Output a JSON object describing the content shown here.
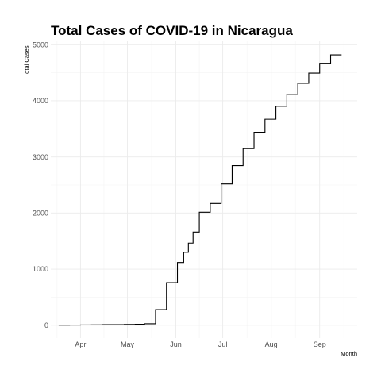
{
  "chart_data": {
    "type": "line",
    "title": "Total Cases of COVID-19 in Nicaragua",
    "xlabel": "Month",
    "ylabel": "Total Cases",
    "xlim": [
      "2020-03-13",
      "2020-09-25"
    ],
    "ylim": [
      -230,
      5060
    ],
    "x_ticks": [
      {
        "date": "2020-04-01",
        "label": "Apr"
      },
      {
        "date": "2020-05-01",
        "label": "May"
      },
      {
        "date": "2020-06-01",
        "label": "Jun"
      },
      {
        "date": "2020-07-01",
        "label": "Jul"
      },
      {
        "date": "2020-08-01",
        "label": "Aug"
      },
      {
        "date": "2020-09-01",
        "label": "Sep"
      }
    ],
    "y_ticks": [
      0,
      1000,
      2000,
      3000,
      4000,
      5000
    ],
    "grid": true,
    "series": [
      {
        "style": "step",
        "points": [
          {
            "x": "2020-03-18",
            "y": 1
          },
          {
            "x": "2020-03-25",
            "y": 2
          },
          {
            "x": "2020-04-01",
            "y": 5
          },
          {
            "x": "2020-04-08",
            "y": 6
          },
          {
            "x": "2020-04-15",
            "y": 9
          },
          {
            "x": "2020-04-22",
            "y": 10
          },
          {
            "x": "2020-04-29",
            "y": 14
          },
          {
            "x": "2020-05-06",
            "y": 16
          },
          {
            "x": "2020-05-12",
            "y": 25
          },
          {
            "x": "2020-05-19",
            "y": 279
          },
          {
            "x": "2020-05-26",
            "y": 759
          },
          {
            "x": "2020-06-02",
            "y": 1118
          },
          {
            "x": "2020-06-06",
            "y": 1300
          },
          {
            "x": "2020-06-09",
            "y": 1464
          },
          {
            "x": "2020-06-12",
            "y": 1661
          },
          {
            "x": "2020-06-16",
            "y": 2014
          },
          {
            "x": "2020-06-23",
            "y": 2170
          },
          {
            "x": "2020-06-30",
            "y": 2519
          },
          {
            "x": "2020-07-07",
            "y": 2846
          },
          {
            "x": "2020-07-14",
            "y": 3147
          },
          {
            "x": "2020-07-21",
            "y": 3439
          },
          {
            "x": "2020-07-28",
            "y": 3672
          },
          {
            "x": "2020-08-04",
            "y": 3902
          },
          {
            "x": "2020-08-11",
            "y": 4115
          },
          {
            "x": "2020-08-18",
            "y": 4311
          },
          {
            "x": "2020-08-25",
            "y": 4494
          },
          {
            "x": "2020-09-01",
            "y": 4668
          },
          {
            "x": "2020-09-08",
            "y": 4818
          },
          {
            "x": "2020-09-15",
            "y": 4818
          }
        ]
      }
    ]
  }
}
